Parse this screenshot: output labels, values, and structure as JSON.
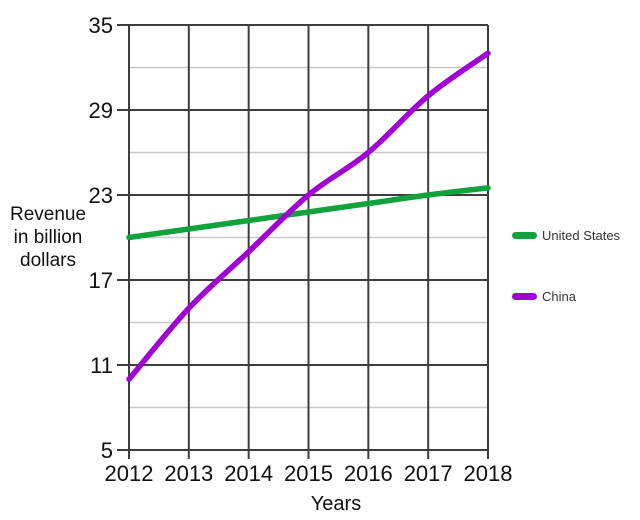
{
  "chart_data": {
    "type": "line",
    "title": "",
    "xlabel": "Years",
    "ylabel": "Revenue in billion dollars",
    "ylabel_lines": [
      "Revenue",
      "in billion",
      "dollars"
    ],
    "x": [
      2012,
      2013,
      2014,
      2015,
      2016,
      2017,
      2018
    ],
    "series": [
      {
        "name": "United States",
        "color": "#12A23C",
        "values": [
          20,
          20.6,
          21.2,
          21.8,
          22.4,
          23,
          23.5
        ]
      },
      {
        "name": "China",
        "color": "#A000D4",
        "values": [
          10,
          15,
          19,
          23,
          26,
          30,
          33
        ]
      }
    ],
    "ylim": [
      5,
      35
    ],
    "yticks_major": [
      5,
      11,
      17,
      23,
      29,
      35
    ],
    "yticks_minor": [
      8,
      14,
      20,
      26,
      32
    ],
    "grid": true,
    "legend_position": "right",
    "colors": {
      "major_grid": "#3d3d3d",
      "minor_grid": "#c9c9c9",
      "axis_text": "#111111",
      "legend_text": "#333333",
      "background": "#ffffff"
    }
  }
}
